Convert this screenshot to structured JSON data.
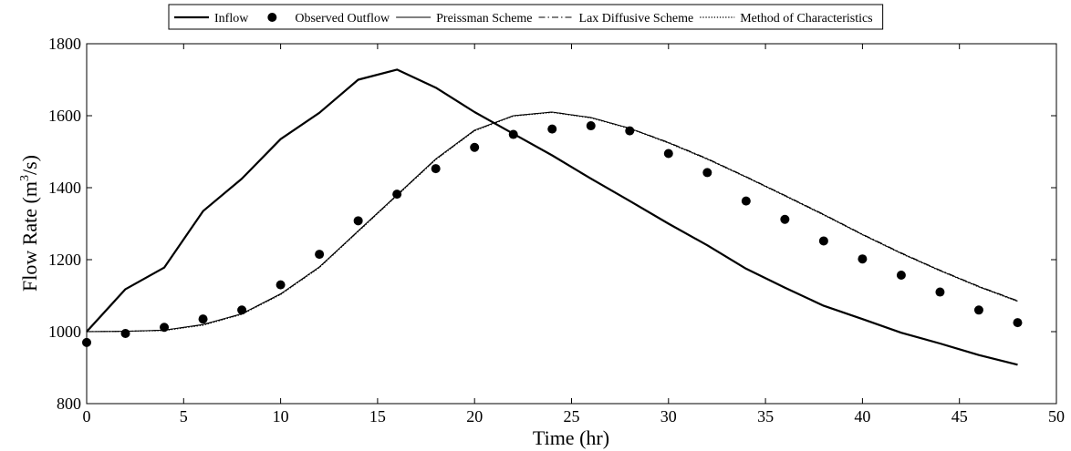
{
  "chart_data": {
    "type": "line",
    "xlabel": "Time (hr)",
    "ylabel_main": "Flow Rate (m",
    "ylabel_sup": "3",
    "ylabel_end": "/s)",
    "xlim": [
      0,
      50
    ],
    "ylim": [
      800,
      1800
    ],
    "x_ticks": [
      0,
      5,
      10,
      15,
      20,
      25,
      30,
      35,
      40,
      45,
      50
    ],
    "y_ticks": [
      800,
      1000,
      1200,
      1400,
      1600,
      1800
    ],
    "grid": false,
    "legend_position": "top-center",
    "series": [
      {
        "name": "Inflow",
        "style": "solid-thick",
        "x": [
          0,
          2,
          4,
          6,
          8,
          10,
          12,
          14,
          16,
          18,
          20,
          22,
          24,
          26,
          28,
          30,
          32,
          34,
          36,
          38,
          40,
          42,
          44,
          46,
          48
        ],
        "y": [
          1000,
          1118,
          1178,
          1335,
          1425,
          1535,
          1608,
          1700,
          1728,
          1678,
          1610,
          1550,
          1490,
          1425,
          1363,
          1300,
          1240,
          1175,
          1122,
          1072,
          1035,
          997,
          967,
          935,
          908
        ]
      },
      {
        "name": "Observed Outflow",
        "style": "dots",
        "x": [
          0,
          2,
          4,
          6,
          8,
          10,
          12,
          14,
          16,
          18,
          20,
          22,
          24,
          26,
          28,
          30,
          32,
          34,
          36,
          38,
          40,
          42,
          44,
          46,
          48
        ],
        "y": [
          970,
          995,
          1012,
          1035,
          1060,
          1130,
          1215,
          1308,
          1382,
          1453,
          1512,
          1548,
          1563,
          1572,
          1558,
          1495,
          1442,
          1363,
          1312,
          1252,
          1202,
          1157,
          1110,
          1060,
          1025
        ]
      },
      {
        "name": "Preissman Scheme",
        "style": "solid-thin",
        "x": [
          0,
          2,
          4,
          6,
          8,
          10,
          12,
          14,
          16,
          18,
          20,
          22,
          24,
          26,
          28,
          30,
          32,
          34,
          36,
          38,
          40,
          42,
          44,
          46,
          48
        ],
        "y": [
          1000,
          1001,
          1004,
          1020,
          1050,
          1105,
          1180,
          1280,
          1380,
          1480,
          1560,
          1600,
          1610,
          1595,
          1565,
          1525,
          1480,
          1430,
          1378,
          1325,
          1270,
          1218,
          1170,
          1125,
          1085
        ]
      },
      {
        "name": "Lax Diffusive Scheme",
        "style": "dash-dot",
        "x": [
          0,
          2,
          4,
          6,
          8,
          10,
          12,
          14,
          16,
          18,
          20,
          22,
          24,
          26,
          28,
          30,
          32,
          34,
          36,
          38,
          40,
          42,
          44,
          46,
          48
        ],
        "y": [
          1000,
          1001,
          1004,
          1019,
          1049,
          1104,
          1179,
          1279,
          1379,
          1479,
          1559,
          1600,
          1610,
          1595,
          1565,
          1526,
          1481,
          1431,
          1379,
          1326,
          1271,
          1219,
          1171,
          1126,
          1086
        ]
      },
      {
        "name": "Method of Characteristics",
        "style": "dotted",
        "x": [
          0,
          2,
          4,
          6,
          8,
          10,
          12,
          14,
          16,
          18,
          20,
          22,
          24,
          26,
          28,
          30,
          32,
          34,
          36,
          38,
          40,
          42,
          44,
          46,
          48
        ],
        "y": [
          1000,
          1001,
          1003,
          1018,
          1048,
          1103,
          1178,
          1278,
          1378,
          1478,
          1558,
          1599,
          1609,
          1594,
          1564,
          1524,
          1479,
          1429,
          1377,
          1324,
          1269,
          1217,
          1169,
          1124,
          1084
        ]
      }
    ]
  }
}
